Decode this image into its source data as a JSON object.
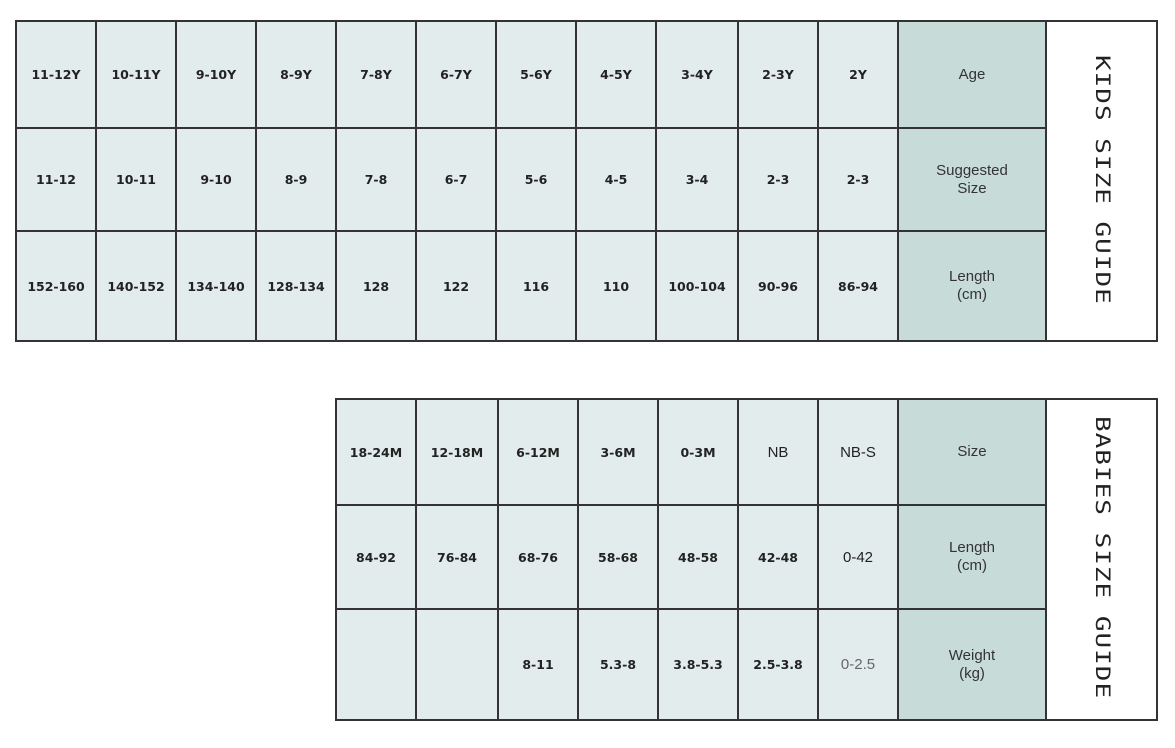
{
  "kids": {
    "title": "KIDS SIZE GUIDE",
    "rows": [
      {
        "label": "Age",
        "values": [
          "11-12Y",
          "10-11Y",
          "9-10Y",
          "8-9Y",
          "7-8Y",
          "6-7Y",
          "5-6Y",
          "4-5Y",
          "3-4Y",
          "2-3Y",
          "2Y"
        ]
      },
      {
        "label_line1": "Suggested",
        "label_line2": "Size",
        "values": [
          "11-12",
          "10-11",
          "9-10",
          "8-9",
          "7-8",
          "6-7",
          "5-6",
          "4-5",
          "3-4",
          "2-3",
          "2-3"
        ]
      },
      {
        "label_line1": "Length",
        "label_line2": "(cm)",
        "values": [
          "152-160",
          "140-152",
          "134-140",
          "128-134",
          "128",
          "122",
          "116",
          "110",
          "100-104",
          "90-96",
          "86-94"
        ]
      }
    ]
  },
  "babies": {
    "title": "BABIES SIZE GUIDE",
    "rows": [
      {
        "label": "Size",
        "values": [
          "18-24M",
          "12-18M",
          "6-12M",
          "3-6M",
          "0-3M",
          "NB",
          "NB-S"
        ]
      },
      {
        "label_line1": "Length",
        "label_line2": "(cm)",
        "values": [
          "84-92",
          "76-84",
          "68-76",
          "58-68",
          "48-58",
          "42-48",
          "0-42"
        ]
      },
      {
        "label_line1": "Weight",
        "label_line2": "(kg)",
        "values": [
          "",
          "",
          "8-11",
          "5.3-8",
          "3.8-5.3",
          "2.5-3.8",
          "0-2.5"
        ]
      }
    ]
  },
  "colors": {
    "cell": "#e3ecec",
    "label_cell": "#c7dbd9",
    "border": "#333333"
  }
}
